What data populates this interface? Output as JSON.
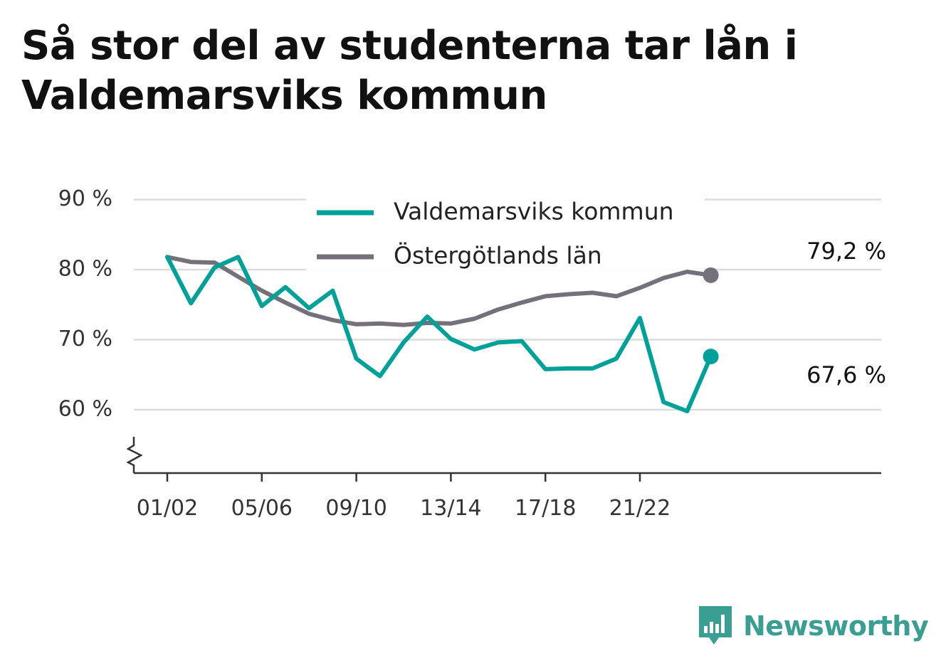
{
  "title": "Så stor del av studenterna tar lån i Valdemarsviks kommun",
  "brand": {
    "name": "Newsworthy",
    "icon": "bar-chart-speech-bubble-icon",
    "color": "#3a9e93"
  },
  "colors": {
    "valdemarsvik": "#00a198",
    "ostergotland": "#74717a",
    "grid": "#dcdcdc",
    "axis": "#333333",
    "text": "#333333"
  },
  "chart_data": {
    "type": "line",
    "x": [
      "01/02",
      "02/03",
      "03/04",
      "04/05",
      "05/06",
      "06/07",
      "07/08",
      "08/09",
      "09/10",
      "10/11",
      "11/12",
      "12/13",
      "13/14",
      "14/15",
      "15/16",
      "16/17",
      "17/18",
      "18/19",
      "19/20",
      "20/21",
      "21/22",
      "22/23",
      "23/24",
      "24/25"
    ],
    "x_tick_labels": [
      "01/02",
      "05/06",
      "09/10",
      "13/14",
      "17/18",
      "21/22"
    ],
    "y_tick_labels": [
      "60 %",
      "70 %",
      "80 %",
      "90 %"
    ],
    "y_ticks": [
      60,
      70,
      80,
      90
    ],
    "ylim": [
      51,
      90
    ],
    "y_axis_break": true,
    "grid": true,
    "legend_position": "top-center",
    "series": [
      {
        "name": "Valdemarsviks kommun",
        "color_key": "valdemarsvik",
        "values": [
          81.8,
          75.2,
          80.3,
          81.8,
          74.8,
          77.5,
          74.5,
          77.0,
          67.3,
          64.8,
          69.6,
          73.3,
          70.1,
          68.6,
          69.6,
          69.8,
          65.8,
          65.9,
          65.9,
          67.3,
          73.1,
          61.1,
          59.8,
          67.6
        ],
        "end_label": "67,6 %"
      },
      {
        "name": "Östergötlands län",
        "color_key": "ostergotland",
        "values": [
          81.8,
          81.1,
          81.0,
          79.0,
          77.0,
          75.3,
          73.7,
          72.8,
          72.2,
          72.3,
          72.1,
          72.4,
          72.3,
          73.0,
          74.3,
          75.3,
          76.2,
          76.5,
          76.7,
          76.2,
          77.4,
          78.8,
          79.7,
          79.2
        ],
        "end_label": "79,2 %"
      }
    ]
  }
}
